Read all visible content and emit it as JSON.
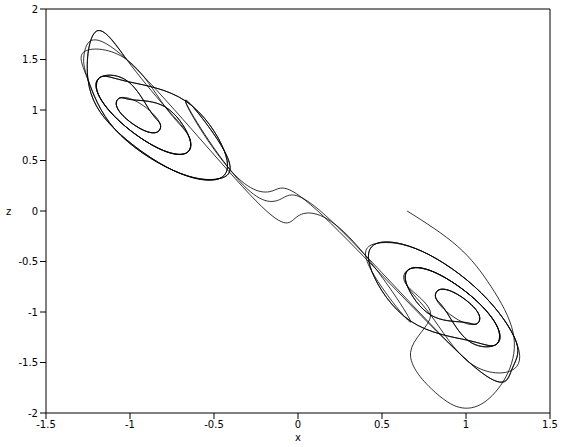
{
  "chart_data": {
    "type": "line",
    "x_label": "x",
    "y_label": "z",
    "xlim": [
      -1.5,
      1.5
    ],
    "xticks": [
      -1.5,
      -1,
      -0.5,
      0,
      0.5,
      1,
      1.5
    ],
    "ylim": [
      -2,
      2
    ],
    "yticks": [
      -2,
      -1.5,
      -1,
      -0.5,
      0,
      0.5,
      1,
      1.5,
      2
    ],
    "color": "#000000",
    "grid": false,
    "x": [
      0.65,
      0.95,
      1.15,
      1.28,
      1.25,
      1.12,
      0.98,
      0.82,
      0.67,
      0.79,
      0.65,
      0.67,
      0.83,
      1.05,
      1.19,
      1.17,
      1.01,
      0.88,
      0.82,
      0.84,
      0.92,
      1.02,
      1.08,
      1.06,
      0.98,
      0.88,
      0.82,
      0.84,
      0.92,
      1.02,
      1.08,
      1.06,
      0.98,
      0.79,
      0.65,
      0.67,
      0.83,
      1.05,
      1.19,
      1.17,
      1.01,
      0.67,
      0.44,
      0.47,
      0.74,
      1.09,
      1.3,
      1.27,
      1.02,
      0.2,
      -0.1,
      -0.35,
      -0.67,
      -0.44,
      -0.47,
      -0.74,
      -1.09,
      -1.25,
      -1.2,
      -1.02,
      -0.79,
      -0.65,
      -0.67,
      -0.83,
      -1.05,
      -1.19,
      -1.17,
      -1.01,
      -0.88,
      -0.82,
      -0.84,
      -0.92,
      -1.02,
      -1.08,
      -1.06,
      -0.98,
      -0.88,
      -0.82,
      -0.84,
      -0.92,
      -1.02,
      -1.08,
      -1.06,
      -0.98,
      -0.79,
      -0.65,
      -0.67,
      -0.83,
      -1.05,
      -1.19,
      -1.17,
      -1.01,
      -0.67,
      -0.44,
      -0.47,
      -0.74,
      -1.09,
      -1.25,
      -1.27,
      -1.02,
      -0.25,
      0,
      0.3,
      0.67,
      0.44,
      0.47,
      0.74,
      1.09,
      1.3,
      1.27,
      1.02,
      0.79,
      0.65,
      0.67,
      0.83,
      1.05,
      1.19,
      1.17,
      1.01,
      0.88,
      0.82,
      0.84,
      0.92,
      1.02,
      1.08,
      1.06,
      0.98,
      0.79,
      0.65,
      0.67,
      0.83,
      1.05,
      1.19,
      1.17,
      1.01,
      0.67,
      0.44,
      0.47,
      0.74,
      1.09,
      1.3,
      1.27,
      1.02,
      0.15,
      -0.15,
      -0.4,
      -0.67,
      -0.44,
      -0.47,
      -0.74,
      -1.09,
      -1.25,
      -1.27,
      -1.02,
      -0.79,
      -0.65,
      -0.67,
      -0.83,
      -1.05,
      -1.19,
      -1.17,
      -1.01,
      -0.88,
      -0.82,
      -0.84,
      -0.92,
      -1.02,
      -1.08,
      -1.06,
      -0.98,
      -0.79,
      -0.65,
      -0.67,
      -0.83,
      -1.05,
      -1.19,
      -1.17,
      -1.01,
      -0.67,
      -0.44,
      -0.47,
      -0.74,
      -1.09,
      -1.25,
      -1.2,
      -1.02
    ],
    "values": [
      0,
      -0.35,
      -0.75,
      -1.2,
      -1.6,
      -1.88,
      -1.95,
      -1.8,
      -1.4,
      -1.03,
      -0.74,
      -0.57,
      -0.62,
      -0.87,
      -1.16,
      -1.33,
      -1.28,
      -0.99,
      -0.86,
      -0.78,
      -0.8,
      -0.91,
      -1.04,
      -1.12,
      -1.1,
      -0.99,
      -0.86,
      -0.78,
      -0.8,
      -0.91,
      -1.04,
      -1.12,
      -1.1,
      -1.03,
      -0.74,
      -0.57,
      -0.62,
      -0.87,
      -1.16,
      -1.33,
      -1.28,
      -1.09,
      -0.6,
      -0.32,
      -0.4,
      -0.81,
      -1.3,
      -1.58,
      -1.5,
      -0.1,
      0.12,
      0.3,
      1.09,
      0.6,
      0.32,
      0.4,
      0.81,
      1.3,
      1.78,
      1.5,
      1.03,
      0.74,
      0.57,
      0.62,
      0.87,
      1.16,
      1.33,
      1.28,
      0.99,
      0.86,
      0.78,
      0.8,
      0.91,
      1.04,
      1.12,
      1.1,
      0.99,
      0.86,
      0.78,
      0.8,
      0.91,
      1.04,
      1.12,
      1.1,
      1.03,
      0.74,
      0.57,
      0.62,
      0.87,
      1.16,
      1.33,
      1.28,
      1.09,
      0.6,
      0.32,
      0.4,
      0.81,
      1.3,
      1.58,
      1.5,
      0.1,
      -0.05,
      -0.25,
      -1.09,
      -0.6,
      -0.32,
      -0.4,
      -0.81,
      -1.3,
      -1.58,
      -1.5,
      -1.03,
      -0.74,
      -0.57,
      -0.62,
      -0.87,
      -1.16,
      -1.33,
      -1.28,
      -0.99,
      -0.86,
      -0.78,
      -0.8,
      -0.91,
      -1.04,
      -1.12,
      -1.1,
      -1.03,
      -0.74,
      -0.57,
      -0.62,
      -0.87,
      -1.16,
      -1.33,
      -1.28,
      -1.09,
      -0.6,
      -0.32,
      -0.4,
      -0.81,
      -1.3,
      -1.58,
      -1.5,
      -0.05,
      0.2,
      0.4,
      1.09,
      0.6,
      0.32,
      0.4,
      0.81,
      1.3,
      1.58,
      1.5,
      1.03,
      0.74,
      0.57,
      0.62,
      0.87,
      1.16,
      1.33,
      1.28,
      0.99,
      0.86,
      0.78,
      0.8,
      0.91,
      1.04,
      1.12,
      1.1,
      1.03,
      0.74,
      0.57,
      0.62,
      0.87,
      1.16,
      1.33,
      1.28,
      1.09,
      0.6,
      0.32,
      0.4,
      0.81,
      1.3,
      1.78,
      1.5
    ]
  }
}
